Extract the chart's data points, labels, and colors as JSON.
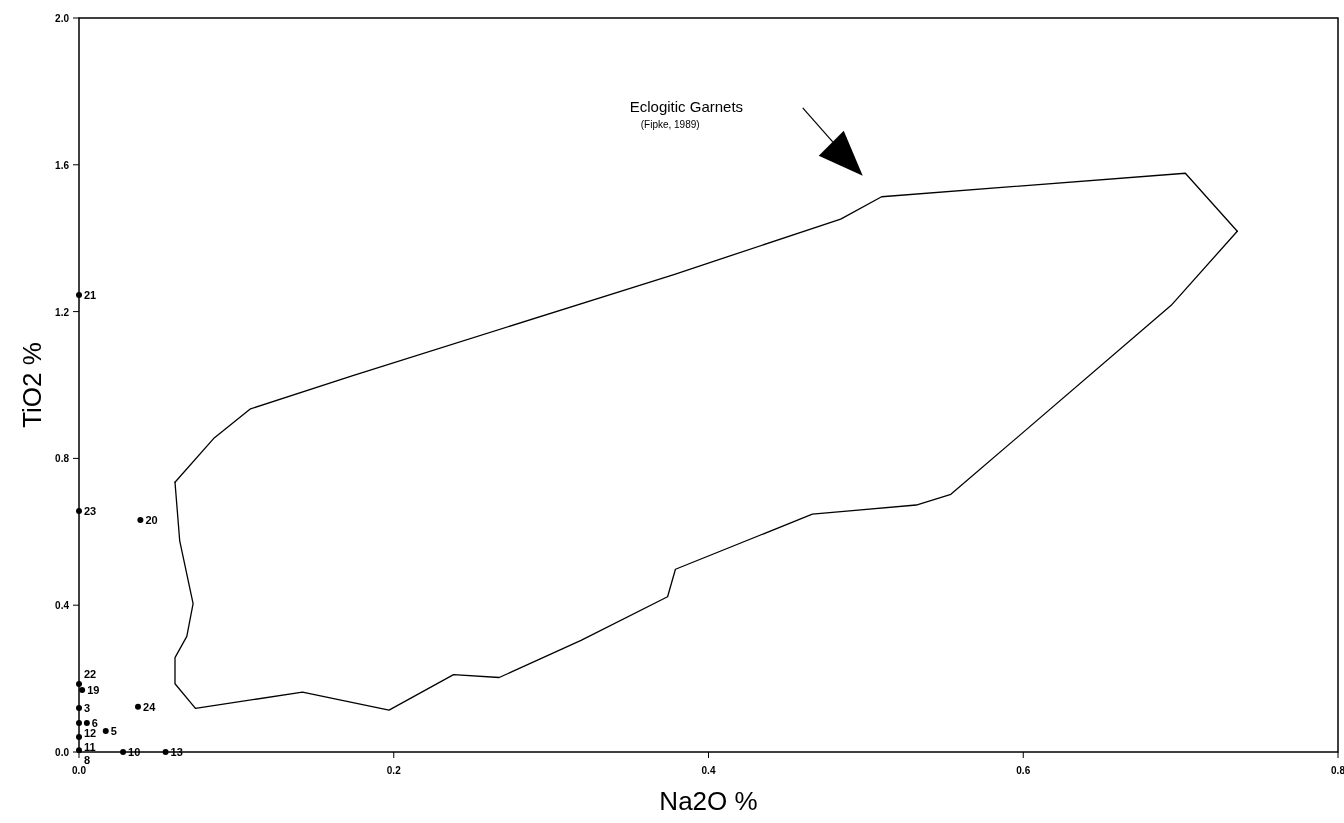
{
  "chart_data": {
    "type": "line",
    "xlabel": "Na2O %",
    "ylabel": "TiO2 %",
    "xlim": [
      0,
      0.8
    ],
    "ylim": [
      0,
      2.0
    ],
    "xticks": [
      {
        "value": 0,
        "label": "0.0"
      },
      {
        "value": 0.2,
        "label": "0.2"
      },
      {
        "value": 0.4,
        "label": "0.4"
      },
      {
        "value": 0.6,
        "label": "0.6"
      },
      {
        "value": 0.8,
        "label": "0.8"
      }
    ],
    "yticks": [
      {
        "value": 0,
        "label": "0.0"
      },
      {
        "value": 0.4,
        "label": "0.4"
      },
      {
        "value": 0.8,
        "label": "0.8"
      },
      {
        "value": 1.2,
        "label": "1.2"
      },
      {
        "value": 1.6,
        "label": "1.6"
      },
      {
        "value": 2.0,
        "label": "2.0"
      }
    ],
    "grid": false,
    "legend": false,
    "line_style": "solid",
    "series": [
      {
        "color": "#000000",
        "marker": "none",
        "x": [
          0.061,
          0.0855,
          0.109,
          0.173,
          0.378,
          0.484,
          0.51,
          0.703,
          0.736
        ],
        "values": [
          0.735,
          0.854,
          0.935,
          1.024,
          1.301,
          1.452,
          1.513,
          1.577,
          1.419
        ]
      },
      {
        "color": "#000000",
        "marker": "none",
        "x": [
          0.074,
          0.142,
          0.197,
          0.238,
          0.267,
          0.319,
          0.374,
          0.379,
          0.466,
          0.532,
          0.554,
          0.694,
          0.736
        ],
        "values": [
          0.119,
          0.163,
          0.114,
          0.211,
          0.203,
          0.304,
          0.423,
          0.498,
          0.648,
          0.673,
          0.702,
          1.217,
          1.419
        ]
      },
      {
        "color": "#000000",
        "marker": "none",
        "x": [
          0.074,
          0.061,
          0.061,
          0.0685,
          0.0725,
          0.064,
          0.061
        ],
        "values": [
          0.119,
          0.186,
          0.257,
          0.315,
          0.404,
          0.575,
          0.735
        ]
      },
      {
        "type": "scatter",
        "name": "21",
        "color": "#000000",
        "x": [
          0
        ],
        "values": [
          1.245
        ]
      },
      {
        "type": "scatter",
        "name": "23",
        "color": "#000000",
        "x": [
          0
        ],
        "values": [
          0.657
        ]
      },
      {
        "type": "scatter",
        "name": "20",
        "color": "#000000",
        "x": [
          0.039
        ],
        "values": [
          0.632
        ]
      },
      {
        "type": "scatter",
        "name": "22",
        "color": "#000000",
        "x": [
          0
        ],
        "values": [
          0.185
        ]
      },
      {
        "type": "scatter",
        "name": "19",
        "color": "#000000",
        "x": [
          0.002
        ],
        "values": [
          0.169
        ]
      },
      {
        "type": "scatter",
        "name": "3",
        "color": "#000000",
        "x": [
          0
        ],
        "values": [
          0.12
        ]
      },
      {
        "type": "scatter",
        "name": "24",
        "color": "#000000",
        "x": [
          0.0375
        ],
        "values": [
          0.123
        ]
      },
      {
        "type": "scatter",
        "name": "12",
        "color": "#000000",
        "x": [
          0
        ],
        "values": [
          0.079
        ]
      },
      {
        "type": "scatter",
        "name": "6",
        "color": "#000000",
        "x": [
          0.005
        ],
        "values": [
          0.079
        ]
      },
      {
        "type": "scatter",
        "name": "11",
        "color": "#000000",
        "x": [
          0
        ],
        "values": [
          0.041
        ]
      },
      {
        "type": "scatter",
        "name": "5",
        "color": "#000000",
        "x": [
          0.017
        ],
        "values": [
          0.057
        ]
      },
      {
        "type": "scatter",
        "name": "8",
        "color": "#000000",
        "x": [
          0
        ],
        "values": [
          0.005
        ]
      },
      {
        "type": "scatter",
        "name": "10",
        "color": "#000000",
        "x": [
          0.028
        ],
        "values": [
          0
        ]
      },
      {
        "type": "scatter",
        "name": "13",
        "color": "#000000",
        "x": [
          0.055
        ],
        "values": [
          0
        ]
      }
    ],
    "marker": "circle",
    "annotations": [
      "Eclogitic Garnets",
      "(Fipke, 1989)"
    ]
  }
}
